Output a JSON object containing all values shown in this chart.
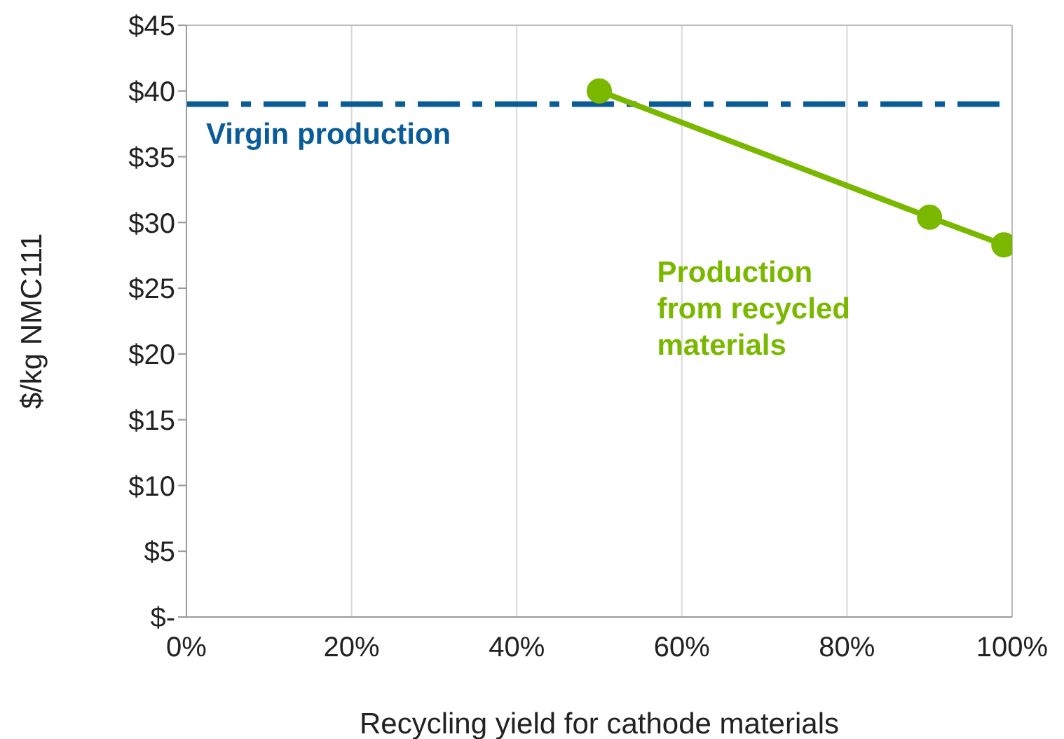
{
  "chart_data": {
    "type": "line",
    "xlabel": "Recycling yield for cathode materials",
    "ylabel": "$/kg NMC111",
    "x": [
      50,
      90,
      99
    ],
    "series": [
      {
        "name": "Production from recycled materials",
        "color": "#7ab800",
        "values": [
          40,
          30.4,
          28.3
        ]
      }
    ],
    "xlim": [
      0,
      100
    ],
    "xticks": [
      {
        "value": 0,
        "label": "0%"
      },
      {
        "value": 20,
        "label": "20%"
      },
      {
        "value": 40,
        "label": "40%"
      },
      {
        "value": 60,
        "label": "60%"
      },
      {
        "value": 80,
        "label": "80%"
      },
      {
        "value": 100,
        "label": "100%"
      }
    ],
    "ylim": [
      0,
      45
    ],
    "yticks": [
      {
        "value": 0,
        "label": "$-"
      },
      {
        "value": 5,
        "label": "$5"
      },
      {
        "value": 10,
        "label": "$10"
      },
      {
        "value": 15,
        "label": "$15"
      },
      {
        "value": 20,
        "label": "$20"
      },
      {
        "value": 25,
        "label": "$25"
      },
      {
        "value": 30,
        "label": "$30"
      },
      {
        "value": 35,
        "label": "$35"
      },
      {
        "value": 40,
        "label": "$40"
      },
      {
        "value": 45,
        "label": "$45"
      }
    ],
    "ref_lines": [
      {
        "axis": "y",
        "value": 39,
        "label": "Virgin production",
        "color": "#0a5c99",
        "line_style": "dashdot"
      }
    ],
    "grid": "x",
    "marker": "circle",
    "line_style": "solid"
  }
}
